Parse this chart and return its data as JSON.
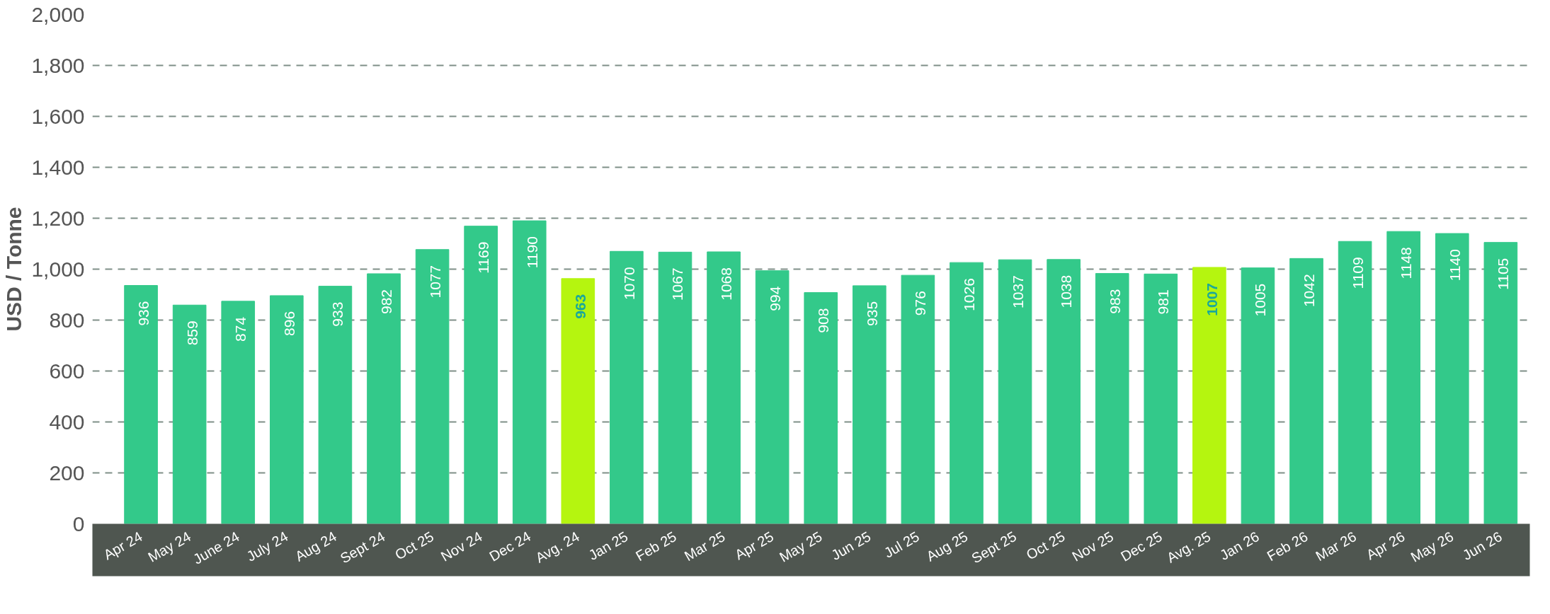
{
  "chart_data": {
    "type": "bar",
    "ylabel": "USD / Tonne",
    "categories": [
      "Apr 24",
      "May 24",
      "June 24",
      "July 24",
      "Aug 24",
      "Sept 24",
      "Oct 25",
      "Nov 24",
      "Dec 24",
      "Avg. 24",
      "Jan 25",
      "Feb 25",
      "Mar 25",
      "Apr 25",
      "May 25",
      "Jun 25",
      "Jul 25",
      "Aug 25",
      "Sept 25",
      "Oct 25",
      "Nov 25",
      "Dec 25",
      "Avg. 25",
      "Jan 26",
      "Feb 26",
      "Mar 26",
      "Apr 26",
      "May 26",
      "Jun 26"
    ],
    "values": [
      936,
      859,
      874,
      896,
      933,
      982,
      1077,
      1169,
      1190,
      963,
      1070,
      1067,
      1068,
      994,
      908,
      935,
      976,
      1026,
      1037,
      1038,
      983,
      981,
      1007,
      1005,
      1042,
      1109,
      1148,
      1140,
      1105
    ],
    "colors": [
      "#33c98a",
      "#33c98a",
      "#33c98a",
      "#33c98a",
      "#33c98a",
      "#33c98a",
      "#33c98a",
      "#33c98a",
      "#33c98a",
      "#b5f50f",
      "#33c98a",
      "#33c98a",
      "#33c98a",
      "#33c98a",
      "#33c98a",
      "#33c98a",
      "#33c98a",
      "#33c98a",
      "#33c98a",
      "#33c98a",
      "#33c98a",
      "#33c98a",
      "#b5f50f",
      "#33c98a",
      "#33c98a",
      "#33c98a",
      "#33c98a",
      "#33c98a",
      "#33c98a"
    ],
    "ylim": [
      0,
      2000
    ],
    "yticks": [
      {
        "value": 0,
        "label": "0"
      },
      {
        "value": 200,
        "label": "200"
      },
      {
        "value": 400,
        "label": "400"
      },
      {
        "value": 600,
        "label": "600"
      },
      {
        "value": 800,
        "label": "800"
      },
      {
        "value": 1000,
        "label": "1,000"
      },
      {
        "value": 1200,
        "label": "1,200"
      },
      {
        "value": 1400,
        "label": "1,400"
      },
      {
        "value": 1600,
        "label": "1,600"
      },
      {
        "value": 1800,
        "label": "1,800"
      },
      {
        "value": 2000,
        "label": "2,000"
      }
    ],
    "grid": "y",
    "data_labels": true
  }
}
